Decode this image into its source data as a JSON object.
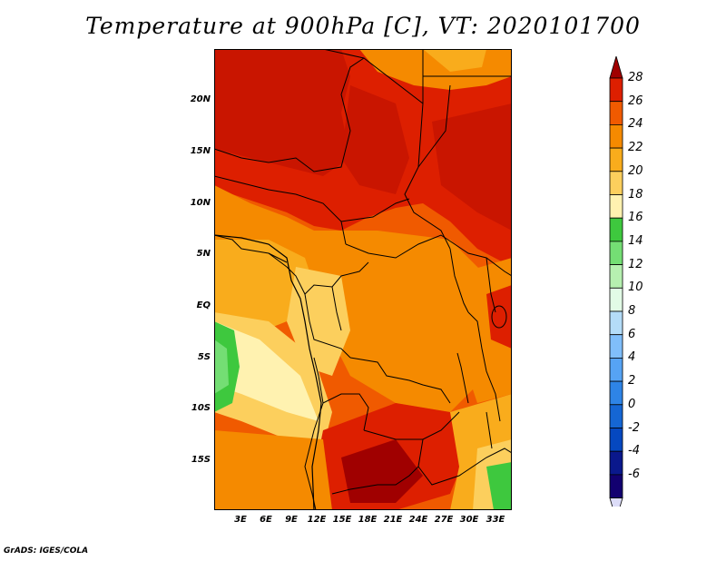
{
  "title": "Temperature at 900hPa [C], VT: 2020101700",
  "credit": "GrADS: IGES/COLA",
  "y_axis_labels": [
    "20N",
    "15N",
    "10N",
    "5N",
    "EQ",
    "5S",
    "10S",
    "15S"
  ],
  "x_axis_labels": [
    "3E",
    "6E",
    "9E",
    "12E",
    "15E",
    "18E",
    "21E",
    "24E",
    "27E",
    "30E",
    "33E"
  ],
  "colorbar": {
    "labels": [
      "28",
      "26",
      "24",
      "22",
      "20",
      "18",
      "16",
      "14",
      "12",
      "10",
      "8",
      "6",
      "4",
      "2",
      "0",
      "-2",
      "-4",
      "-6"
    ],
    "colors": [
      "#a00000",
      "#dd1f00",
      "#f05a00",
      "#f58a00",
      "#f9ac1c",
      "#fccf5d",
      "#fff2b0",
      "#3ec83e",
      "#74de74",
      "#b6f0b0",
      "#e2fbe6",
      "#b4dcf8",
      "#80befa",
      "#56a3f4",
      "#2e84e6",
      "#1566d4",
      "#0548c0",
      "#0a188c",
      "#120070",
      "#dcdcf8"
    ]
  },
  "colors": {
    "background": "#ffffff",
    "border": "#000000"
  }
}
